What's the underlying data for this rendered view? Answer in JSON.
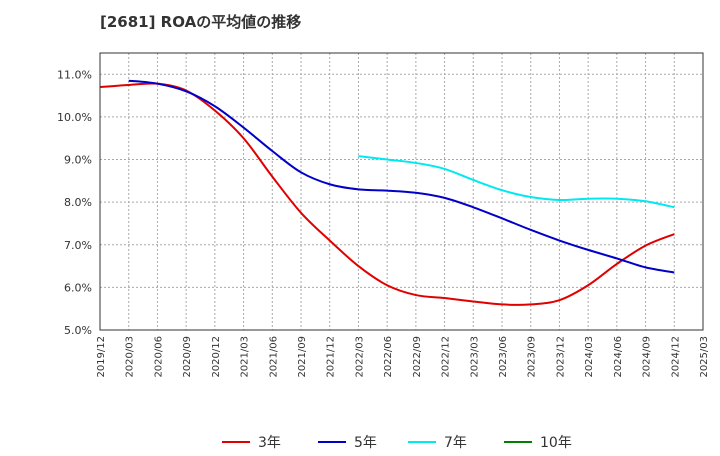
{
  "chart_data": {
    "type": "line",
    "title": "[2681]  ROAの平均値の推移",
    "xlabel": "",
    "ylabel": "",
    "ylim": [
      5.0,
      11.5
    ],
    "x_ticks": [
      "2019/12",
      "2020/03",
      "2020/06",
      "2020/09",
      "2020/12",
      "2021/03",
      "2021/06",
      "2021/09",
      "2021/12",
      "2022/03",
      "2022/06",
      "2022/09",
      "2022/12",
      "2023/03",
      "2023/06",
      "2023/09",
      "2023/12",
      "2024/03",
      "2024/06",
      "2024/09",
      "2024/12",
      "2025/03"
    ],
    "y_ticks": [
      "5.0%",
      "6.0%",
      "7.0%",
      "8.0%",
      "9.0%",
      "10.0%",
      "11.0%"
    ],
    "y_tick_values": [
      5,
      6,
      7,
      8,
      9,
      10,
      11
    ],
    "grid": true,
    "legend_position": "bottom",
    "series": [
      {
        "name": "3年",
        "color": "#e00000",
        "x": [
          "2019/12",
          "2020/03",
          "2020/06",
          "2020/09",
          "2020/12",
          "2021/03",
          "2021/06",
          "2021/09",
          "2021/12",
          "2022/03",
          "2022/06",
          "2022/09",
          "2022/12",
          "2023/03",
          "2023/06",
          "2023/09",
          "2023/12",
          "2024/03",
          "2024/06",
          "2024/09",
          "2024/12"
        ],
        "values": [
          10.7,
          10.75,
          10.78,
          10.62,
          10.15,
          9.5,
          8.6,
          7.75,
          7.1,
          6.5,
          6.05,
          5.82,
          5.75,
          5.67,
          5.6,
          5.6,
          5.7,
          6.05,
          6.55,
          6.98,
          7.25
        ]
      },
      {
        "name": "5年",
        "color": "#0000c8",
        "x": [
          "2020/03",
          "2020/06",
          "2020/09",
          "2020/12",
          "2021/03",
          "2021/06",
          "2021/09",
          "2021/12",
          "2022/03",
          "2022/06",
          "2022/09",
          "2022/12",
          "2023/03",
          "2023/06",
          "2023/09",
          "2023/12",
          "2024/03",
          "2024/06",
          "2024/09",
          "2024/12"
        ],
        "values": [
          10.85,
          10.78,
          10.6,
          10.25,
          9.75,
          9.2,
          8.7,
          8.42,
          8.3,
          8.27,
          8.22,
          8.1,
          7.88,
          7.62,
          7.35,
          7.1,
          6.88,
          6.68,
          6.47,
          6.35
        ]
      },
      {
        "name": "7年",
        "color": "#00e8f0",
        "x": [
          "2022/03",
          "2022/06",
          "2022/09",
          "2022/12",
          "2023/03",
          "2023/06",
          "2023/09",
          "2023/12",
          "2024/03",
          "2024/06",
          "2024/09",
          "2024/12"
        ],
        "values": [
          9.08,
          9.0,
          8.92,
          8.78,
          8.52,
          8.28,
          8.12,
          8.05,
          8.08,
          8.08,
          8.02,
          7.88
        ]
      },
      {
        "name": "10年",
        "color": "#008000",
        "x": [],
        "values": []
      }
    ]
  }
}
